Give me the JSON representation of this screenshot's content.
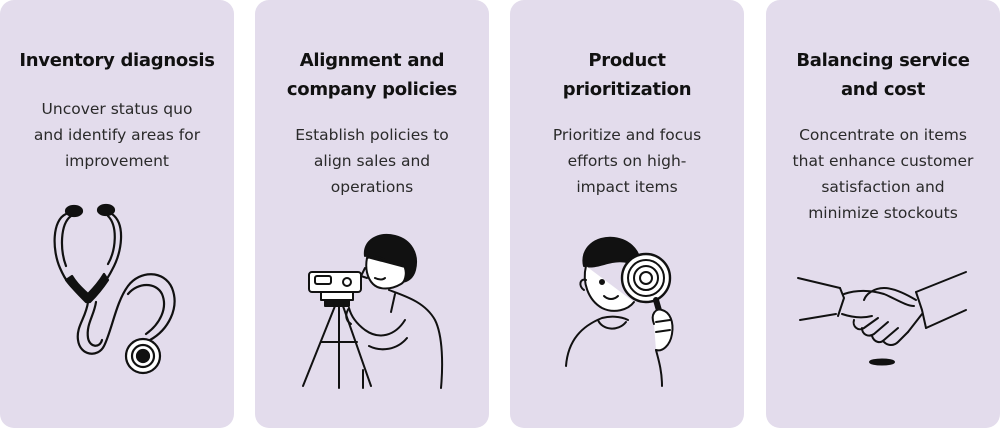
{
  "cards": [
    {
      "title_lines": [
        "Inventory diagnosis"
      ],
      "desc_lines": [
        "Uncover status quo",
        "and identify areas for",
        "improvement"
      ],
      "icon": "stethoscope-icon"
    },
    {
      "title_lines": [
        "Alignment and",
        "company policies"
      ],
      "desc_lines": [
        "Establish policies to",
        "align sales and",
        "operations"
      ],
      "icon": "surveyor-level-icon"
    },
    {
      "title_lines": [
        "Product",
        "prioritization"
      ],
      "desc_lines": [
        "Prioritize and focus",
        "efforts on high-",
        "impact items"
      ],
      "icon": "magnifying-glass-icon"
    },
    {
      "title_lines": [
        "Balancing service",
        "and cost"
      ],
      "desc_lines": [
        "Concentrate on items",
        "that enhance customer",
        "satisfaction and",
        "minimize stockouts"
      ],
      "icon": "handshake-icon"
    }
  ],
  "colors": {
    "card_background": "#e3dcec",
    "title_text": "#111111",
    "body_text": "#2a2a2a",
    "illustration_stroke": "#111111"
  }
}
